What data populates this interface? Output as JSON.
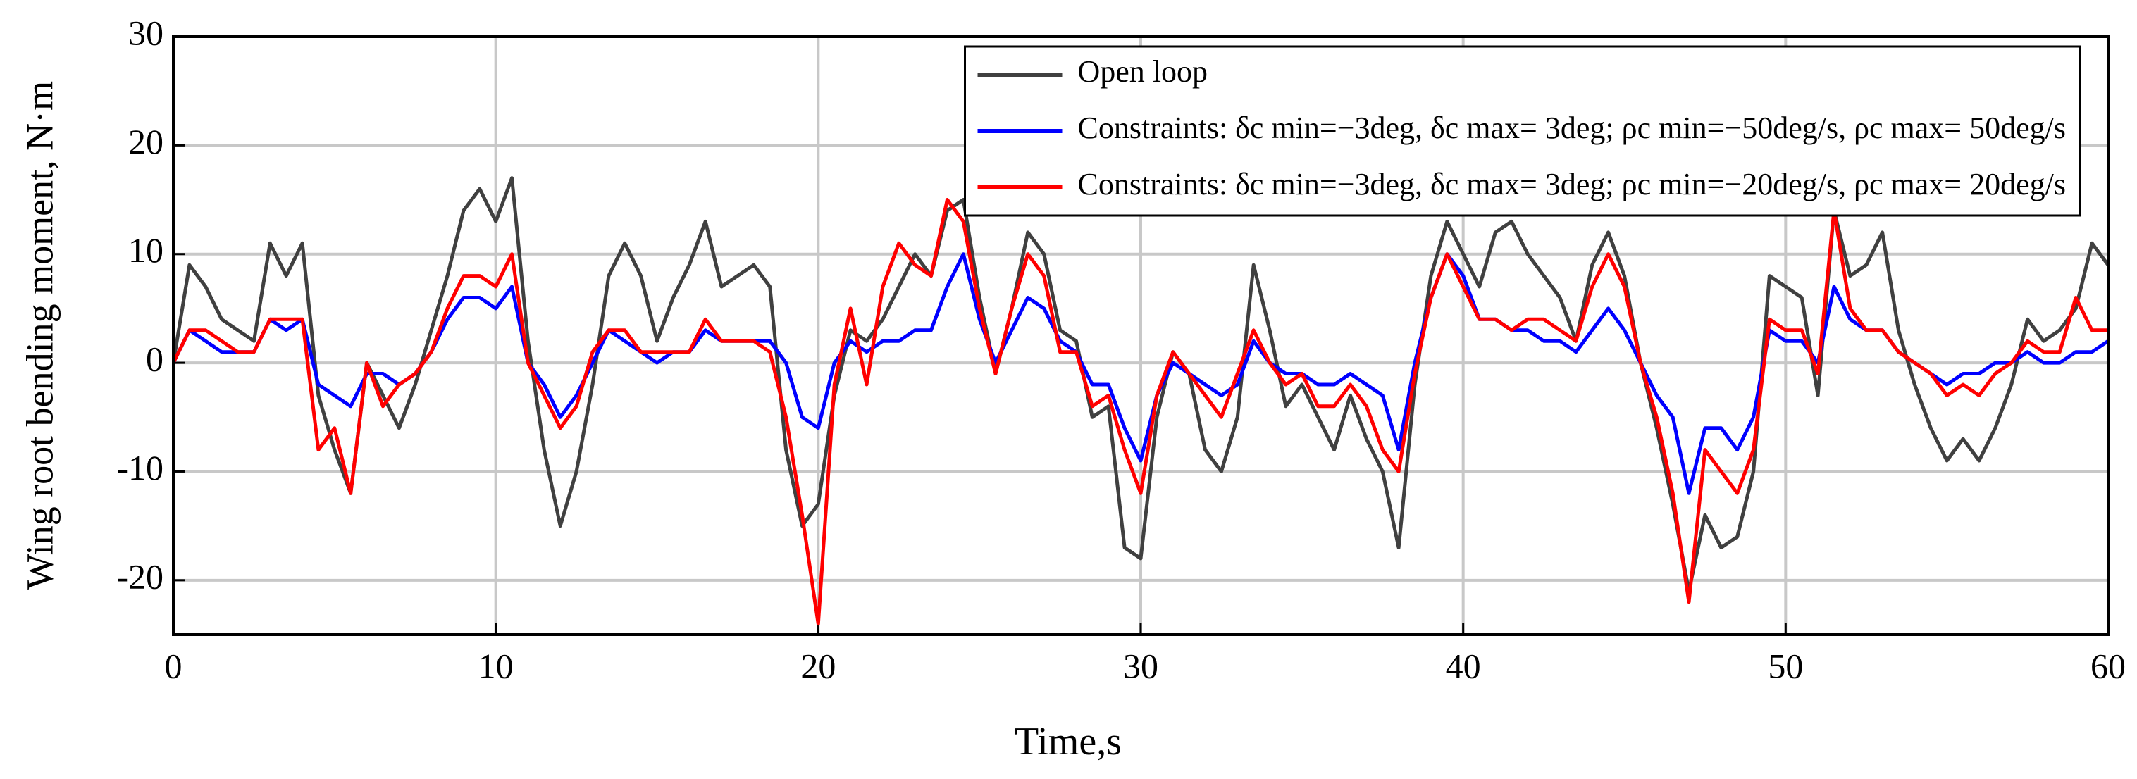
{
  "chart_data": {
    "type": "line",
    "xlabel": "Time,s",
    "ylabel": "Wing root bending moment, N·m",
    "xlim": [
      0,
      60
    ],
    "xticks": [
      0,
      10,
      20,
      30,
      40,
      50,
      60
    ],
    "ylim": [
      -25,
      30
    ],
    "yticks": [
      -20,
      -10,
      0,
      10,
      20,
      30
    ],
    "grid": true,
    "legend": "upper right",
    "x": [
      0,
      0.5,
      1,
      1.5,
      2,
      2.5,
      3,
      3.5,
      4,
      4.5,
      5,
      5.5,
      6,
      6.5,
      7,
      7.5,
      8,
      8.5,
      9,
      9.5,
      10,
      10.5,
      11,
      11.5,
      12,
      12.5,
      13,
      13.5,
      14,
      14.5,
      15,
      15.5,
      16,
      16.5,
      17,
      17.5,
      18,
      18.5,
      19,
      19.5,
      20,
      20.5,
      21,
      21.5,
      22,
      22.5,
      23,
      23.5,
      24,
      24.5,
      25,
      25.5,
      26,
      26.5,
      27,
      27.5,
      28,
      28.5,
      29,
      29.5,
      30,
      30.5,
      31,
      31.5,
      32,
      32.5,
      33,
      33.5,
      34,
      34.5,
      35,
      35.5,
      36,
      36.5,
      37,
      37.5,
      38,
      38.5,
      39,
      39.5,
      40,
      40.5,
      41,
      41.5,
      42,
      42.5,
      43,
      43.5,
      44,
      44.5,
      45,
      45.5,
      46,
      46.5,
      47,
      47.5,
      48,
      48.5,
      49,
      49.5,
      50,
      50.5,
      51,
      51.5,
      52,
      52.5,
      53,
      53.5,
      54,
      54.5,
      55,
      55.5,
      56,
      56.5,
      57,
      57.5,
      58,
      58.5,
      59,
      59.5,
      60
    ],
    "series": [
      {
        "name": "Open loop",
        "color": "#404040",
        "values": [
          0,
          9,
          7,
          4,
          3,
          2,
          11,
          8,
          11,
          -3,
          -8,
          -12,
          0,
          -3,
          -6,
          -2,
          3,
          8,
          14,
          16,
          13,
          17,
          2,
          -8,
          -15,
          -10,
          -2,
          8,
          11,
          8,
          2,
          6,
          9,
          13,
          7,
          8,
          9,
          7,
          -8,
          -15,
          -13,
          -3,
          3,
          2,
          4,
          7,
          10,
          8,
          14,
          15,
          6,
          -1,
          5,
          12,
          10,
          3,
          2,
          -5,
          -4,
          -17,
          -18,
          -5,
          1,
          -1,
          -8,
          -10,
          -5,
          9,
          3,
          -4,
          -2,
          -5,
          -8,
          -3,
          -7,
          -10,
          -17,
          -2,
          8,
          13,
          10,
          7,
          12,
          13,
          10,
          8,
          6,
          2,
          9,
          12,
          8,
          0,
          -6,
          -13,
          -21,
          -14,
          -17,
          -16,
          -10,
          8,
          7,
          6,
          -3,
          14,
          8,
          9,
          12,
          3,
          -2,
          -6,
          -9,
          -7,
          -9,
          -6,
          -2,
          4,
          2,
          3,
          5,
          11,
          9
        ]
      },
      {
        "name": "Constraints: δc min=−3deg, δc max= 3deg; ρc min=−50deg/s, ρc max= 50deg/s",
        "color": "#0000ff",
        "values": [
          0,
          3,
          2,
          1,
          1,
          1,
          4,
          3,
          4,
          -2,
          -3,
          -4,
          -1,
          -1,
          -2,
          -1,
          1,
          4,
          6,
          6,
          5,
          7,
          0,
          -2,
          -5,
          -3,
          0,
          3,
          2,
          1,
          0,
          1,
          1,
          3,
          2,
          2,
          2,
          2,
          0,
          -5,
          -6,
          0,
          2,
          1,
          2,
          2,
          3,
          3,
          7,
          10,
          4,
          0,
          3,
          6,
          5,
          2,
          1,
          -2,
          -2,
          -6,
          -9,
          -3,
          0,
          -1,
          -2,
          -3,
          -2,
          2,
          0,
          -1,
          -1,
          -2,
          -2,
          -1,
          -2,
          -3,
          -8,
          0,
          6,
          10,
          8,
          4,
          4,
          3,
          3,
          2,
          2,
          1,
          3,
          5,
          3,
          0,
          -3,
          -5,
          -12,
          -6,
          -6,
          -8,
          -5,
          3,
          2,
          2,
          0,
          7,
          4,
          3,
          3,
          1,
          0,
          -1,
          -2,
          -1,
          -1,
          0,
          0,
          1,
          0,
          0,
          1,
          1,
          2
        ]
      },
      {
        "name": "Constraints: δc min=−3deg, δc max= 3deg; ρc min=−20deg/s, ρc max= 20deg/s",
        "color": "#ff0000",
        "values": [
          0,
          3,
          3,
          2,
          1,
          1,
          4,
          4,
          4,
          -8,
          -6,
          -12,
          0,
          -4,
          -2,
          -1,
          1,
          5,
          8,
          8,
          7,
          10,
          0,
          -3,
          -6,
          -4,
          1,
          3,
          3,
          1,
          1,
          1,
          1,
          4,
          2,
          2,
          2,
          1,
          -5,
          -14,
          -24,
          -2,
          5,
          -2,
          7,
          11,
          9,
          8,
          15,
          13,
          5,
          -1,
          5,
          10,
          8,
          1,
          1,
          -4,
          -3,
          -8,
          -12,
          -3,
          1,
          -1,
          -3,
          -5,
          -1,
          3,
          0,
          -2,
          -1,
          -4,
          -4,
          -2,
          -4,
          -8,
          -10,
          -1,
          6,
          10,
          7,
          4,
          4,
          3,
          4,
          4,
          3,
          2,
          7,
          10,
          7,
          0,
          -5,
          -12,
          -22,
          -8,
          -10,
          -12,
          -8,
          4,
          3,
          3,
          -1,
          14,
          5,
          3,
          3,
          1,
          0,
          -1,
          -3,
          -2,
          -3,
          -1,
          0,
          2,
          1,
          1,
          6,
          3,
          3
        ]
      }
    ]
  }
}
